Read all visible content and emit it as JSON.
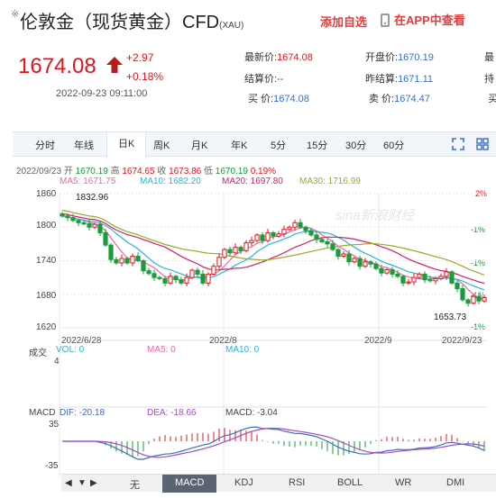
{
  "header": {
    "title": "伦敦金（现货黄金）CFD",
    "exchange": "(XAU)",
    "add_watch": "添加自选",
    "open_app": "在APP中查看"
  },
  "price": {
    "last": "1674.08",
    "change": "+2.97",
    "change_pct": "+0.18%",
    "timestamp": "2022-09-23 09:11:00"
  },
  "quotes": {
    "last_label": "最新价:",
    "last_value": "1674.08",
    "open_label": "开盘价:",
    "open_value": "1670.19",
    "high_label": "最",
    "settle_label": "结算价:",
    "settle_value": "--",
    "prev_settle_label": "昨结算:",
    "prev_settle_value": "1671.11",
    "hold_label": "持",
    "buy_label": "买  价:",
    "buy_value": "1674.08",
    "sell_label": "卖  价:",
    "sell_value": "1674.47",
    "vol_label": "买"
  },
  "tabs": [
    "分时",
    "年线",
    "日K",
    "周K",
    "月K",
    "年K",
    "5分",
    "15分",
    "30分",
    "60分"
  ],
  "active_tab": "日K",
  "ohlc": {
    "date": "2022/09/23",
    "open_label": "开",
    "open": "1670.19",
    "high_label": "高",
    "high": "1674.65",
    "close_label": "收",
    "close": "1673.86",
    "low_label": "低",
    "low": "1670.19",
    "pct": "0.19%"
  },
  "ma": [
    {
      "label": "MA5: 1671.75",
      "color": "#e96aa6"
    },
    {
      "label": "MA10: 1682.20",
      "color": "#27b6d6"
    },
    {
      "label": "MA20: 1697.80",
      "color": "#d1226d"
    },
    {
      "label": "MA30: 1716.99",
      "color": "#9aaa28"
    }
  ],
  "chart": {
    "y_ticks": [
      "1860",
      "1800",
      "1740",
      "1680",
      "1620"
    ],
    "pct_ticks": [
      "2%",
      "-1%",
      "-1%",
      "-1%",
      "-1%"
    ],
    "x_ticks": [
      "2022/6/28",
      "2022/8",
      "2022/9",
      "2022/9/23"
    ],
    "high_label": "1832.96",
    "low_label": "1653.73",
    "watermark": "sina新浪财经"
  },
  "chart_data": {
    "type": "candlestick",
    "ylim": [
      1620,
      1860
    ],
    "x_range": [
      "2022/6/28",
      "2022/9/23"
    ],
    "closes": [
      1820,
      1817,
      1812,
      1808,
      1806,
      1800,
      1805,
      1790,
      1768,
      1742,
      1736,
      1744,
      1736,
      1748,
      1740,
      1722,
      1717,
      1710,
      1708,
      1700,
      1712,
      1706,
      1700,
      1710,
      1723,
      1716,
      1700,
      1716,
      1730,
      1746,
      1760,
      1754,
      1764,
      1758,
      1772,
      1776,
      1786,
      1776,
      1790,
      1784,
      1788,
      1796,
      1800,
      1808,
      1800,
      1794,
      1786,
      1778,
      1774,
      1770,
      1760,
      1748,
      1752,
      1738,
      1744,
      1730,
      1738,
      1734,
      1726,
      1718,
      1724,
      1716,
      1712,
      1700,
      1702,
      1710,
      1716,
      1706,
      1704,
      1708,
      1712,
      1720,
      1700,
      1690,
      1670,
      1664,
      1676,
      1668,
      1674
    ],
    "high": 1832.96,
    "low": 1653.73
  },
  "volume": {
    "label": "成交",
    "vol": "VOL: 0",
    "ma5": "MA5: 0",
    "ma10": "MA10: 0",
    "axis": "4"
  },
  "macd": {
    "label": "MACD",
    "dif": "DIF: -20.18",
    "dea": "DEA: -18.66",
    "macd": "MACD: -3.04",
    "axis_top": "35",
    "axis_bottom": "-35"
  },
  "indicators": [
    "无",
    "MACD",
    "KDJ",
    "RSI",
    "BOLL",
    "WR",
    "DMI"
  ],
  "active_indicator": "MACD"
}
